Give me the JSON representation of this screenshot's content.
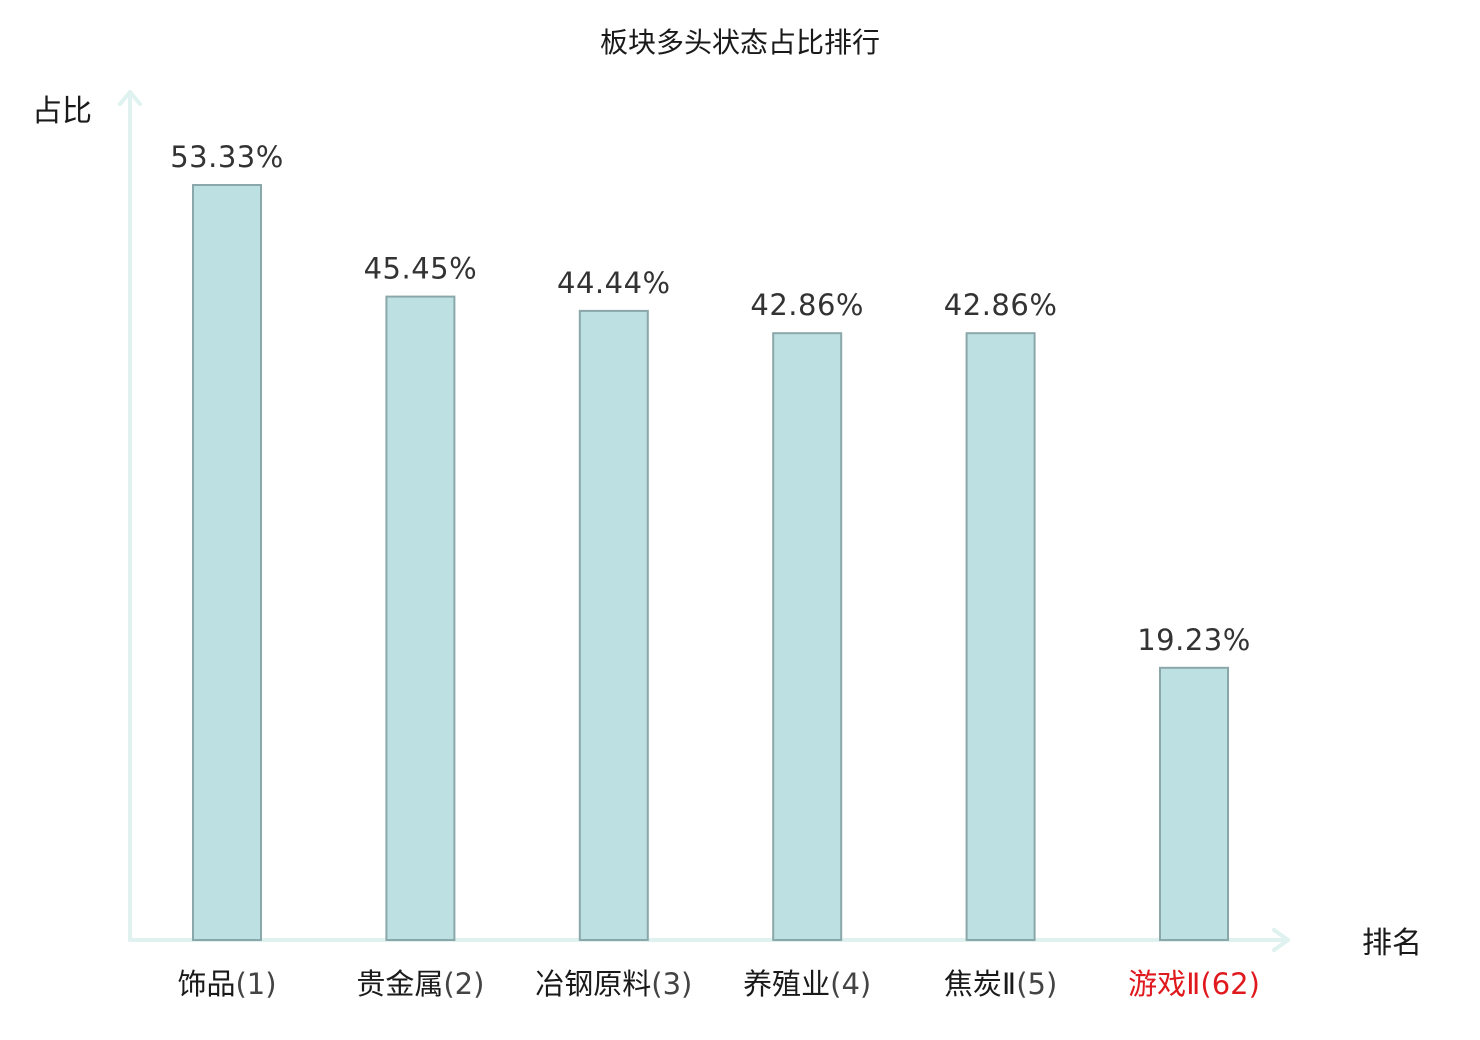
{
  "chart_data": {
    "type": "bar",
    "title": "板块多头状态占比排行",
    "ylabel": "占比",
    "xlabel": "排名",
    "ylim": [
      0,
      60
    ],
    "grid": false,
    "legend": "none",
    "categories": [
      {
        "name": "饰品",
        "rank": "(1)"
      },
      {
        "name": "贵金属",
        "rank": "(2)"
      },
      {
        "name": "冶钢原料",
        "rank": "(3)"
      },
      {
        "name": "养殖业",
        "rank": "(4)"
      },
      {
        "name": "焦炭Ⅱ",
        "rank": "(5)"
      },
      {
        "name": "游戏Ⅱ",
        "rank": "(62)",
        "highlight": true
      }
    ],
    "values": [
      53.33,
      45.45,
      44.44,
      42.86,
      42.86,
      19.23
    ],
    "value_labels": [
      "53.33%",
      "45.45%",
      "44.44%",
      "42.86%",
      "42.86%",
      "19.23%"
    ],
    "colors": {
      "bar_fill": "#bde0e3",
      "bar_stroke": "#8aa7aa",
      "axis": "#dff2ef",
      "text": "#1a1a1a",
      "rank_text": "#444444",
      "highlight_text": "#e0191e",
      "value_text": "#333333"
    }
  }
}
